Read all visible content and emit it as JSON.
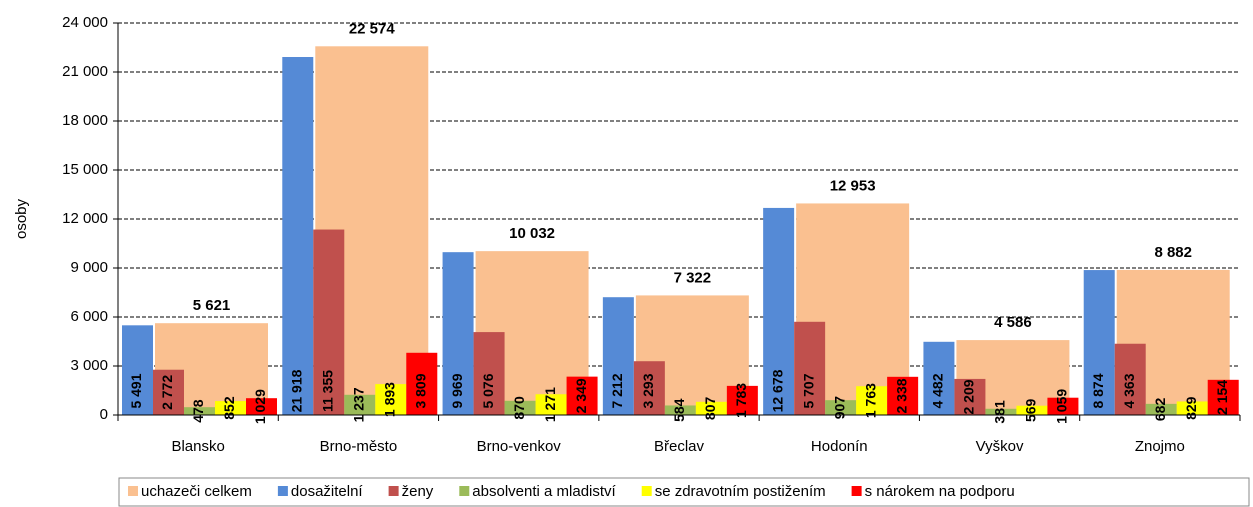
{
  "chart_data": {
    "type": "bar",
    "y_label": "osoby",
    "categories": [
      "Blansko",
      "Brno-město",
      "Brno-venkov",
      "Břeclav",
      "Hodonín",
      "Vyškov",
      "Znojmo"
    ],
    "ylim": [
      0,
      24000
    ],
    "yticks": [
      0,
      {
        "value": 3000,
        "label": "3 000"
      },
      {
        "value": 6000,
        "label": "6 000"
      },
      {
        "value": 9000,
        "label": "9 000"
      },
      {
        "value": 12000,
        "label": "12 000"
      },
      {
        "value": 15000,
        "label": "15 000"
      },
      {
        "value": 18000,
        "label": "18 000"
      },
      {
        "value": 21000,
        "label": "21 000"
      },
      {
        "value": 24000,
        "label": "24 000"
      }
    ],
    "grid": true,
    "legend": "bottom",
    "series": [
      {
        "name": "uchazeči celkem",
        "color": "#fac090",
        "values": [
          5621,
          22574,
          10032,
          7322,
          12953,
          4586,
          8882
        ],
        "value_labels": [
          "5 621",
          "22 574",
          "10 032",
          "7 322",
          "12 953",
          "4 586",
          "8 882"
        ]
      },
      {
        "name": "dosažitelní",
        "color": "#558ad6",
        "values": [
          5491,
          21918,
          9969,
          7212,
          12678,
          4482,
          8874
        ],
        "value_labels": [
          "5 491",
          "21 918",
          "9 969",
          "7 212",
          "12 678",
          "4 482",
          "8 874"
        ]
      },
      {
        "name": "ženy",
        "color": "#c0504d",
        "values": [
          2772,
          11355,
          5076,
          3293,
          5707,
          2209,
          4363
        ],
        "value_labels": [
          "2 772",
          "11 355",
          "5 076",
          "3 293",
          "5 707",
          "2 209",
          "4 363"
        ]
      },
      {
        "name": "absolventi a mladiství",
        "color": "#9bbb59",
        "values": [
          478,
          1237,
          870,
          584,
          907,
          381,
          682
        ],
        "value_labels": [
          "478",
          "1 237",
          "870",
          "584",
          "907",
          "381",
          "682"
        ]
      },
      {
        "name": "se zdravotním postižením",
        "color": "#ffff00",
        "values": [
          852,
          1893,
          1271,
          807,
          1763,
          569,
          829
        ],
        "value_labels": [
          "852",
          "1 893",
          "1 271",
          "807",
          "1 763",
          "569",
          "829"
        ]
      },
      {
        "name": "s nárokem na podporu",
        "color": "#ff0000",
        "values": [
          1029,
          3809,
          2349,
          1783,
          2338,
          1059,
          2154
        ],
        "value_labels": [
          "1 029",
          "3 809",
          "2 349",
          "1 783",
          "2 338",
          "1 059",
          "2 154"
        ]
      }
    ]
  }
}
